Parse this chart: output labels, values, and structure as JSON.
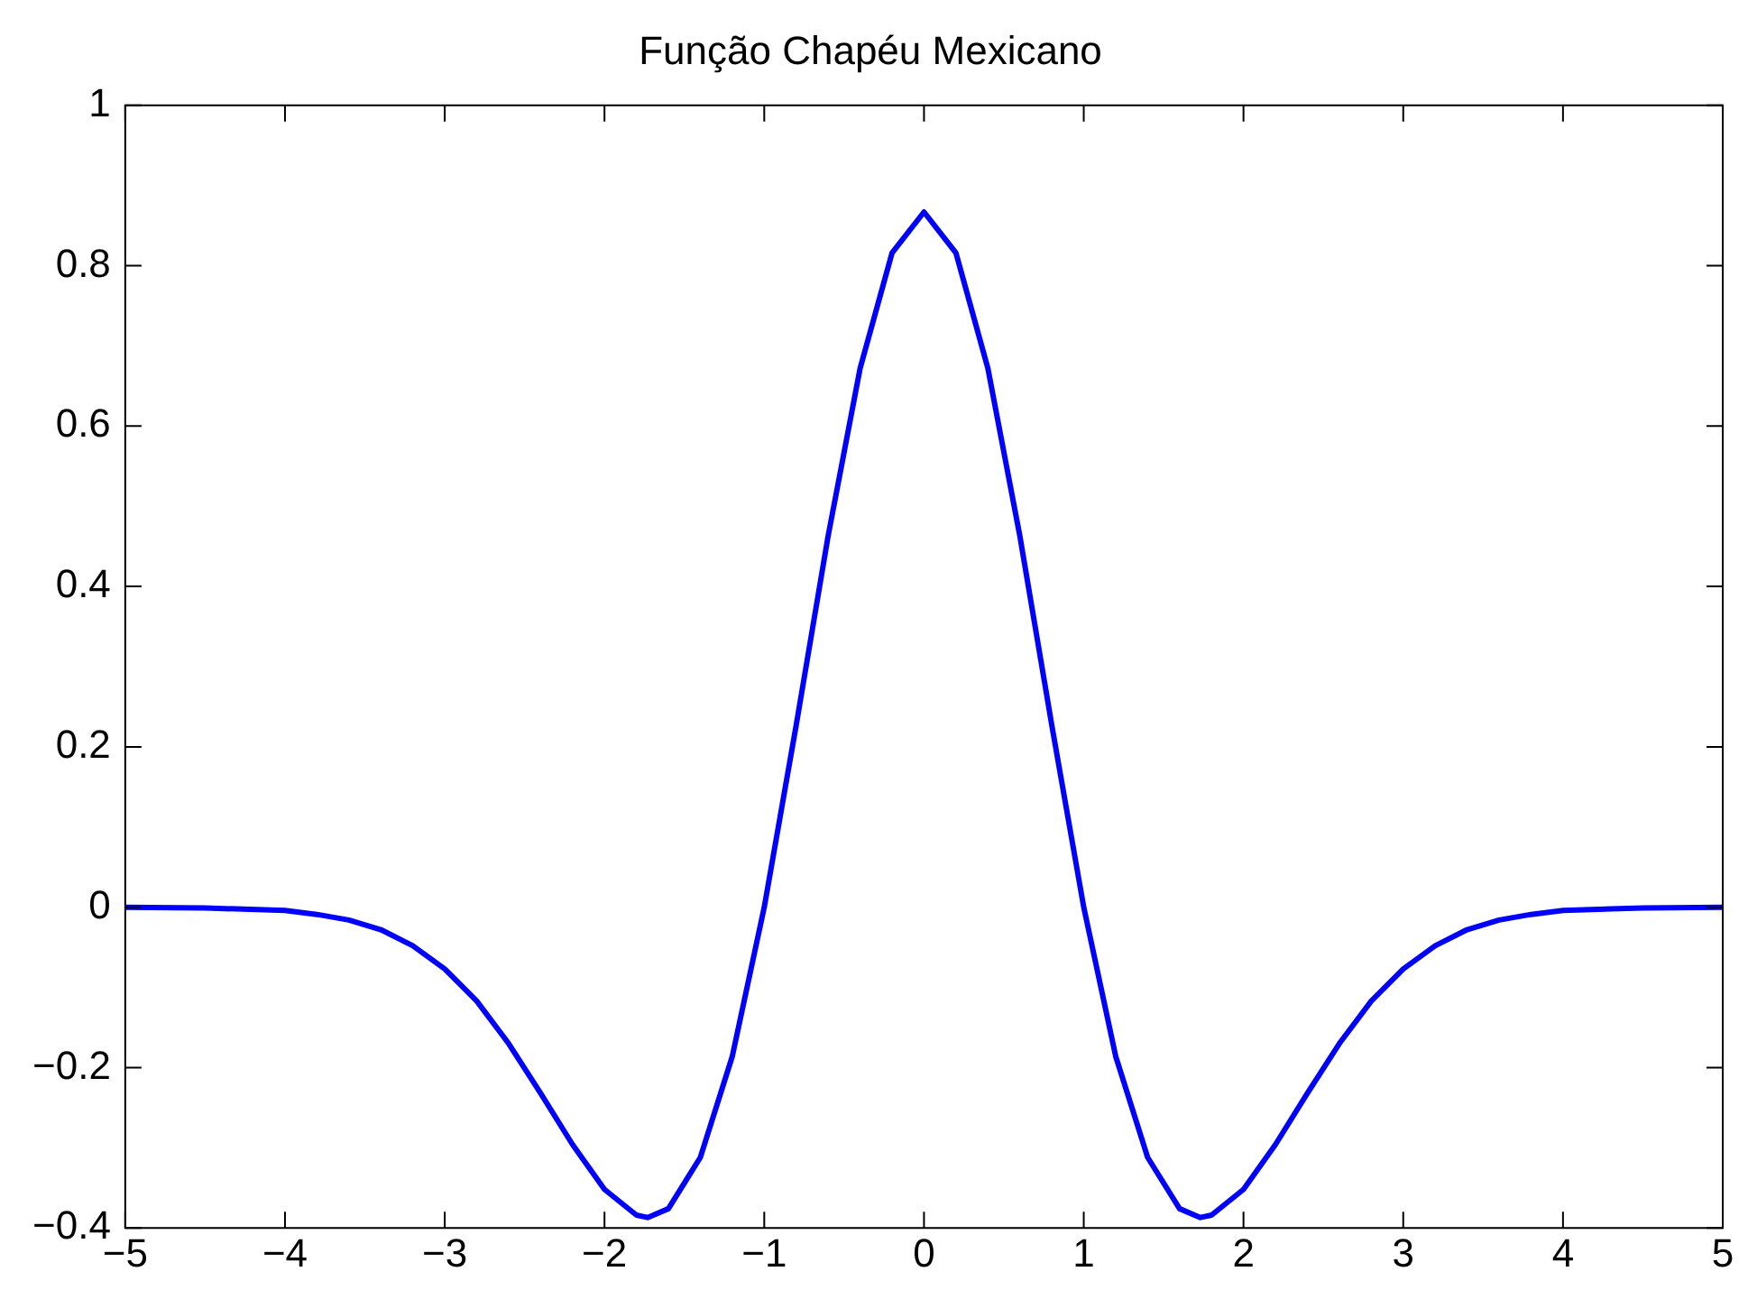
{
  "chart_data": {
    "type": "line",
    "title": "Função Chapéu Mexicano",
    "x": [
      -5,
      -4.5,
      -4,
      -3.8,
      -3.6,
      -3.4,
      -3.2,
      -3,
      -2.8,
      -2.6,
      -2.4,
      -2.2,
      -2,
      -1.8,
      -1.73,
      -1.6,
      -1.4,
      -1.2,
      -1,
      -0.8,
      -0.6,
      -0.4,
      -0.2,
      0,
      0.2,
      0.4,
      0.6,
      0.8,
      1,
      1.2,
      1.4,
      1.6,
      1.73,
      1.8,
      2,
      2.2,
      2.4,
      2.6,
      2.8,
      3,
      3.2,
      3.4,
      3.6,
      3.8,
      4,
      4.5,
      5
    ],
    "series": [
      {
        "color": "#0000ff",
        "values": [
          0,
          -0.001,
          -0.004,
          -0.009,
          -0.016,
          -0.028,
          -0.048,
          -0.077,
          -0.117,
          -0.17,
          -0.232,
          -0.296,
          -0.352,
          -0.384,
          -0.387,
          -0.376,
          -0.312,
          -0.186,
          0,
          0.227,
          0.463,
          0.672,
          0.816,
          0.867,
          0.816,
          0.672,
          0.463,
          0.227,
          0,
          -0.186,
          -0.312,
          -0.376,
          -0.387,
          -0.384,
          -0.352,
          -0.296,
          -0.232,
          -0.17,
          -0.117,
          -0.077,
          -0.048,
          -0.028,
          -0.016,
          -0.009,
          -0.004,
          -0.001,
          0
        ]
      }
    ],
    "xlim": [
      -5,
      5
    ],
    "xticks": [
      {
        "value": -5,
        "label": "−5"
      },
      {
        "value": -4,
        "label": "−4"
      },
      {
        "value": -3,
        "label": "−3"
      },
      {
        "value": -2,
        "label": "−2"
      },
      {
        "value": -1,
        "label": "−1"
      },
      0,
      1,
      2,
      3,
      4,
      5
    ],
    "ylim": [
      -0.4,
      1
    ],
    "yticks": [
      {
        "value": -0.4,
        "label": "−0.4"
      },
      {
        "value": -0.2,
        "label": "−0.2"
      },
      0,
      0.2,
      0.4,
      0.6,
      0.8,
      1
    ],
    "grid": false,
    "legend": false,
    "marker": "none",
    "line_style": "solid"
  }
}
